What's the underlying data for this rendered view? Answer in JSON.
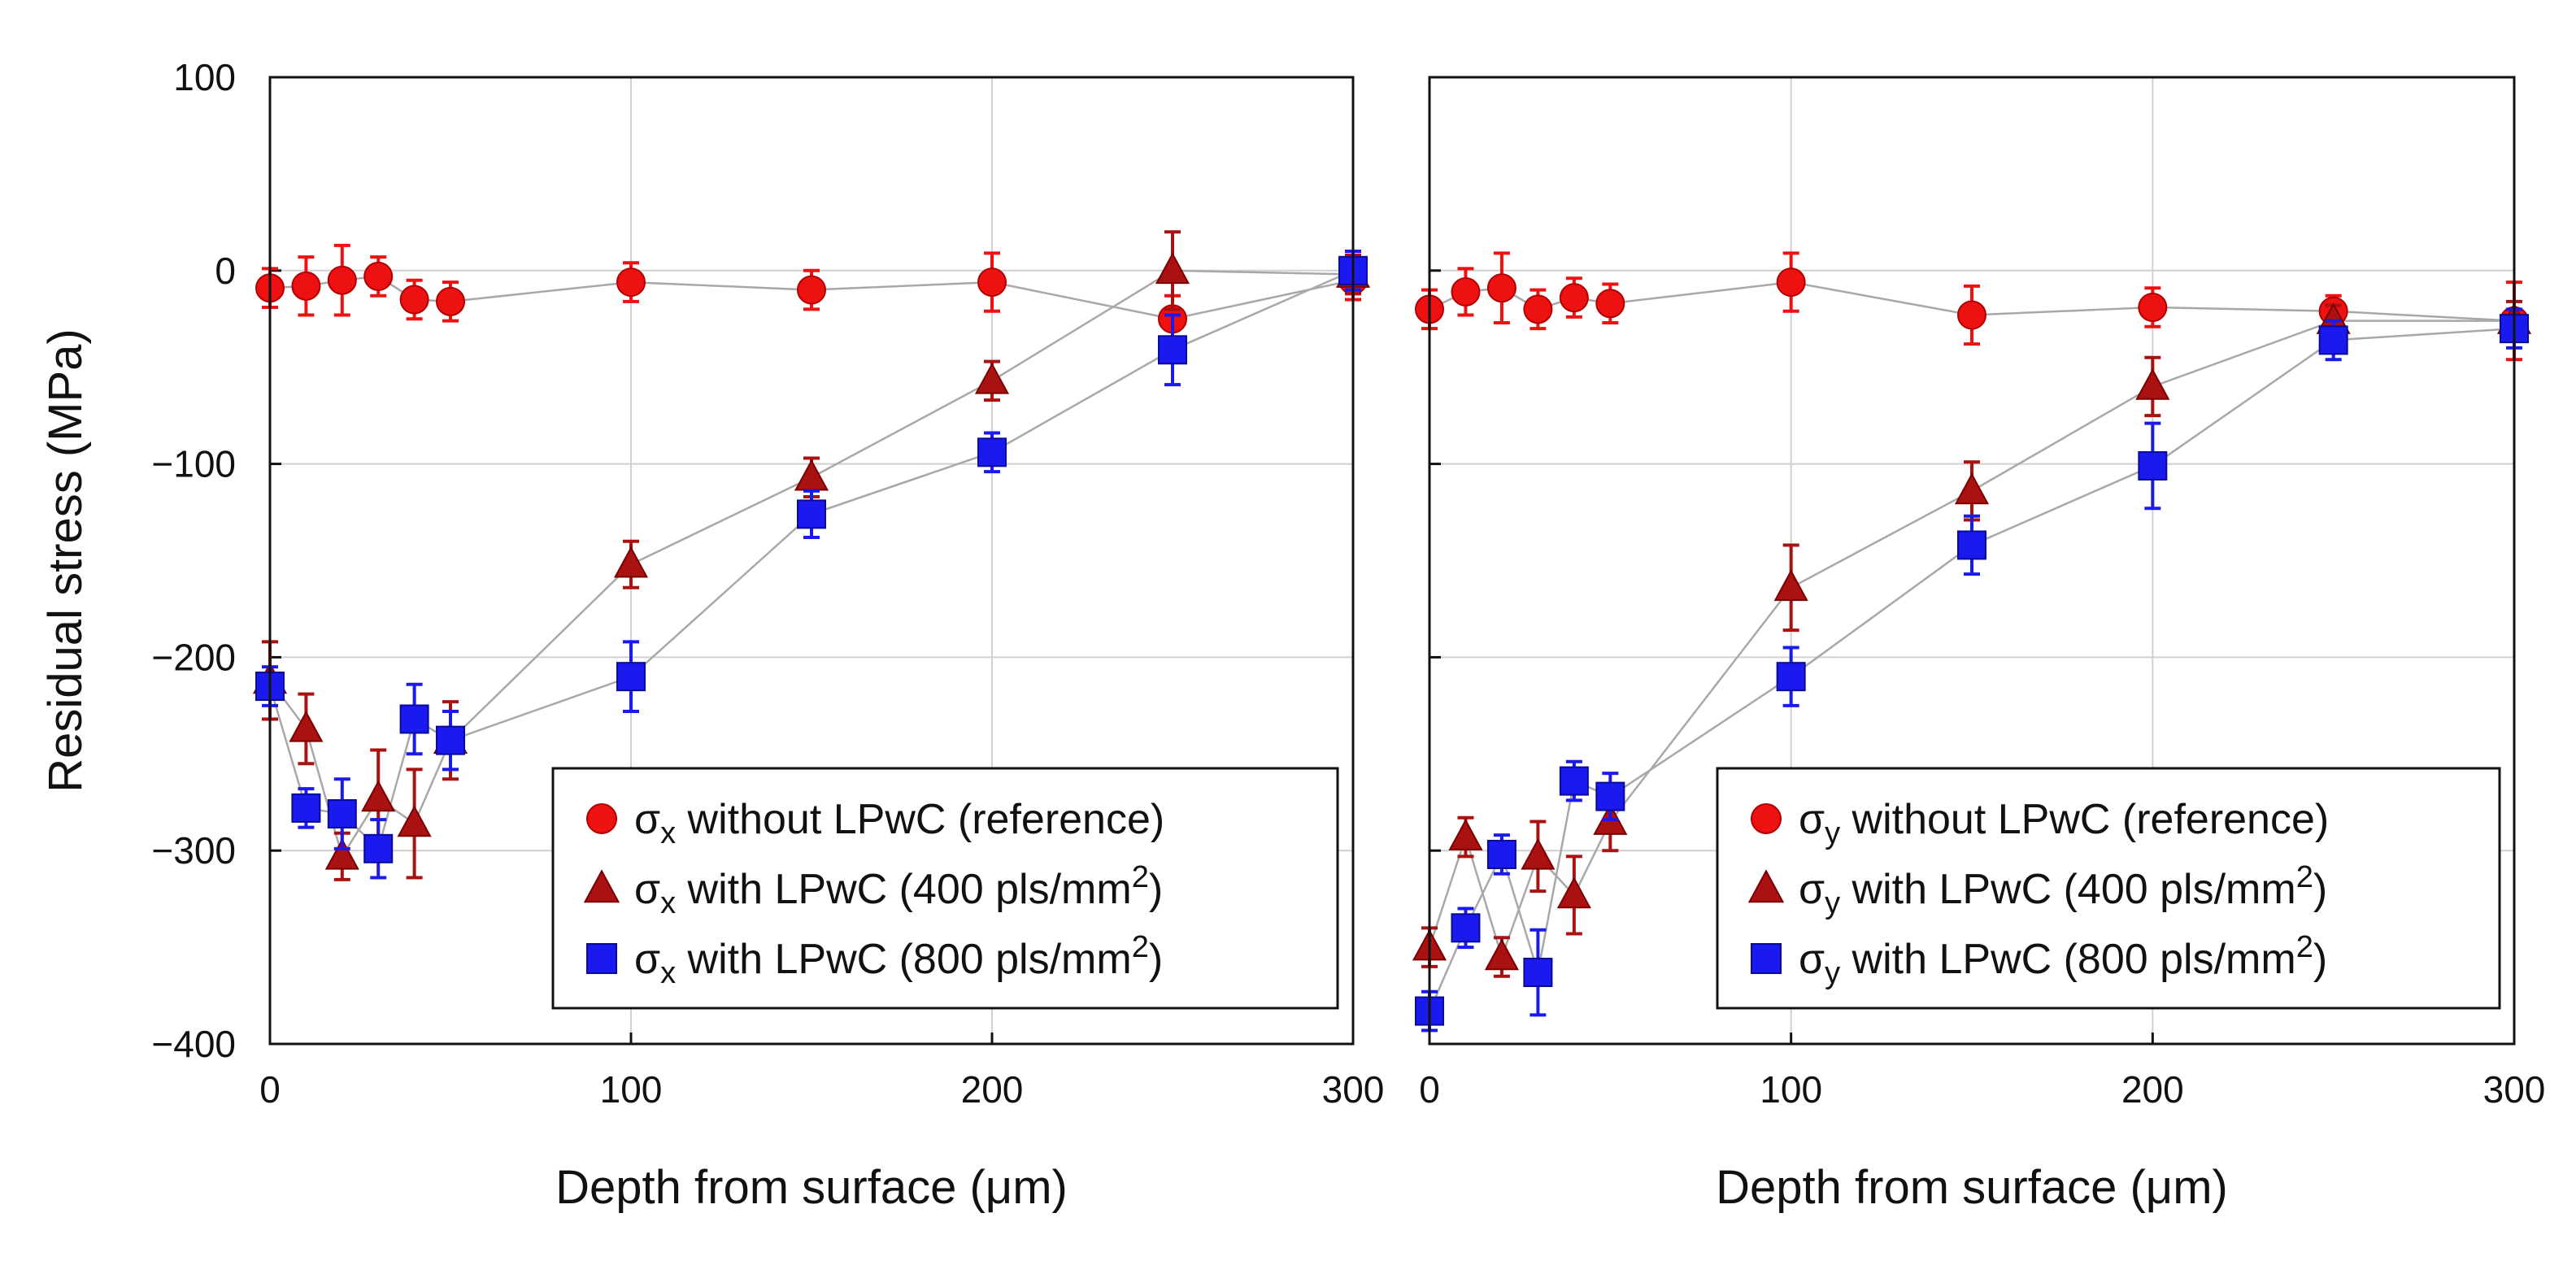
{
  "chart_data": [
    {
      "type": "scatter",
      "panel": "left",
      "xlabel": "Depth from surface (μm)",
      "ylabel": "Residual stress (MPa)",
      "xlim": [
        0,
        300
      ],
      "ylim": [
        -400,
        100
      ],
      "x_ticks": [
        "0",
        "100",
        "200",
        "300"
      ],
      "y_ticks": [
        "100",
        "0",
        "−100",
        "−200",
        "−300",
        "−400"
      ],
      "x_tick_values": [
        0,
        100,
        200,
        300
      ],
      "y_tick_values": [
        100,
        0,
        -100,
        -200,
        -300,
        -400
      ],
      "grid": true,
      "legend_position": "bottom-right",
      "series": [
        {
          "name": "reference",
          "legend_label": "σx without LPwC (reference)",
          "legend_symbol": "σ",
          "legend_subscript": "x",
          "legend_rest": " without LPwC (reference)",
          "legend_sup": "",
          "legend_tail": "",
          "marker": "circle",
          "color": "#ee1111",
          "x": [
            0,
            10,
            20,
            30,
            40,
            50,
            100,
            150,
            200,
            250,
            300
          ],
          "y": [
            -9,
            -8,
            -5,
            -3,
            -15,
            -16,
            -6,
            -10,
            -6,
            -25,
            -5
          ],
          "err": [
            10,
            15,
            18,
            10,
            10,
            10,
            10,
            10,
            15,
            12,
            10
          ]
        },
        {
          "name": "400 pls/mm2",
          "legend_label": "σx with LPwC (400 pls/mm2)",
          "legend_symbol": "σ",
          "legend_subscript": "x",
          "legend_rest": " with LPwC (400 pls/mm",
          "legend_sup": "2",
          "legend_tail": ")",
          "marker": "triangle",
          "color": "#aa1111",
          "x": [
            0,
            10,
            20,
            30,
            40,
            50,
            100,
            150,
            200,
            250,
            300
          ],
          "y": [
            -212,
            -237,
            -303,
            -273,
            -286,
            -243,
            -152,
            -107,
            -57,
            0,
            -2
          ],
          "err": [
            20,
            18,
            12,
            25,
            28,
            20,
            12,
            10,
            10,
            20,
            10
          ]
        },
        {
          "name": "800 pls/mm2",
          "legend_label": "σx with LPwC (800 pls/mm2)",
          "legend_symbol": "σ",
          "legend_subscript": "x",
          "legend_rest": " with LPwC (800 pls/mm",
          "legend_sup": "2",
          "legend_tail": ")",
          "marker": "square",
          "color": "#1a1aee",
          "x": [
            0,
            10,
            20,
            30,
            40,
            50,
            100,
            150,
            200,
            250,
            300
          ],
          "y": [
            -215,
            -278,
            -281,
            -299,
            -232,
            -243,
            -210,
            -126,
            -94,
            -41,
            0
          ],
          "err": [
            10,
            10,
            18,
            15,
            18,
            15,
            18,
            12,
            10,
            18,
            10
          ]
        }
      ]
    },
    {
      "type": "scatter",
      "panel": "right",
      "xlabel": "Depth from surface (μm)",
      "ylabel": "",
      "xlim": [
        0,
        300
      ],
      "ylim": [
        -400,
        100
      ],
      "x_ticks": [
        "0",
        "100",
        "200",
        "300"
      ],
      "x_tick_values": [
        0,
        100,
        200,
        300
      ],
      "y_tick_values": [
        100,
        0,
        -100,
        -200,
        -300,
        -400
      ],
      "grid": true,
      "legend_position": "bottom-right",
      "series": [
        {
          "name": "reference",
          "legend_label": "σy without LPwC (reference)",
          "legend_symbol": "σ",
          "legend_subscript": "y",
          "legend_rest": " without LPwC (reference)",
          "legend_sup": "",
          "legend_tail": "",
          "marker": "circle",
          "color": "#ee1111",
          "x": [
            0,
            10,
            20,
            30,
            40,
            50,
            100,
            150,
            200,
            250,
            300
          ],
          "y": [
            -20,
            -11,
            -9,
            -20,
            -14,
            -17,
            -6,
            -23,
            -19,
            -21,
            -26
          ],
          "err": [
            10,
            12,
            18,
            10,
            10,
            10,
            15,
            15,
            10,
            8,
            20
          ]
        },
        {
          "name": "400 pls/mm2",
          "legend_label": "σy with LPwC (400 pls/mm2)",
          "legend_symbol": "σ",
          "legend_subscript": "y",
          "legend_rest": " with LPwC (400 pls/mm",
          "legend_sup": "2",
          "legend_tail": ")",
          "marker": "triangle",
          "color": "#aa1111",
          "x": [
            0,
            10,
            20,
            30,
            40,
            50,
            100,
            150,
            200,
            250,
            300
          ],
          "y": [
            -350,
            -293,
            -355,
            -303,
            -323,
            -285,
            -164,
            -114,
            -60,
            -26,
            -26
          ],
          "err": [
            10,
            10,
            10,
            18,
            20,
            15,
            22,
            15,
            15,
            8,
            10
          ]
        },
        {
          "name": "800 pls/mm2",
          "legend_label": "σy with LPwC (800 pls/mm2)",
          "legend_symbol": "σ",
          "legend_subscript": "y",
          "legend_rest": " with LPwC (800 pls/mm",
          "legend_sup": "2",
          "legend_tail": ")",
          "marker": "square",
          "color": "#1a1aee",
          "x": [
            0,
            10,
            20,
            30,
            40,
            50,
            100,
            150,
            200,
            250,
            300
          ],
          "y": [
            -383,
            -340,
            -302,
            -363,
            -264,
            -272,
            -210,
            -142,
            -101,
            -36,
            -30
          ],
          "err": [
            10,
            10,
            10,
            22,
            10,
            12,
            15,
            15,
            22,
            10,
            10
          ]
        }
      ]
    }
  ]
}
